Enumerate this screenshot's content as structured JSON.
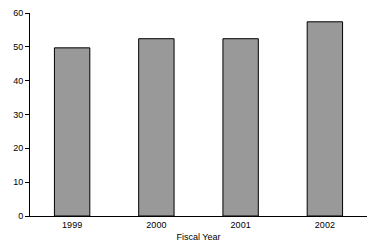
{
  "chart_data": {
    "type": "bar",
    "x_label": "Fiscal Year",
    "categories": [
      "1999",
      "2000",
      "2001",
      "2002"
    ],
    "values": [
      49.7,
      52.4,
      52.4,
      57.4
    ],
    "color": "#999999",
    "ylim": [
      0,
      60
    ],
    "yticks": [
      0,
      10,
      20,
      30,
      40,
      50,
      60
    ],
    "grid": false
  }
}
